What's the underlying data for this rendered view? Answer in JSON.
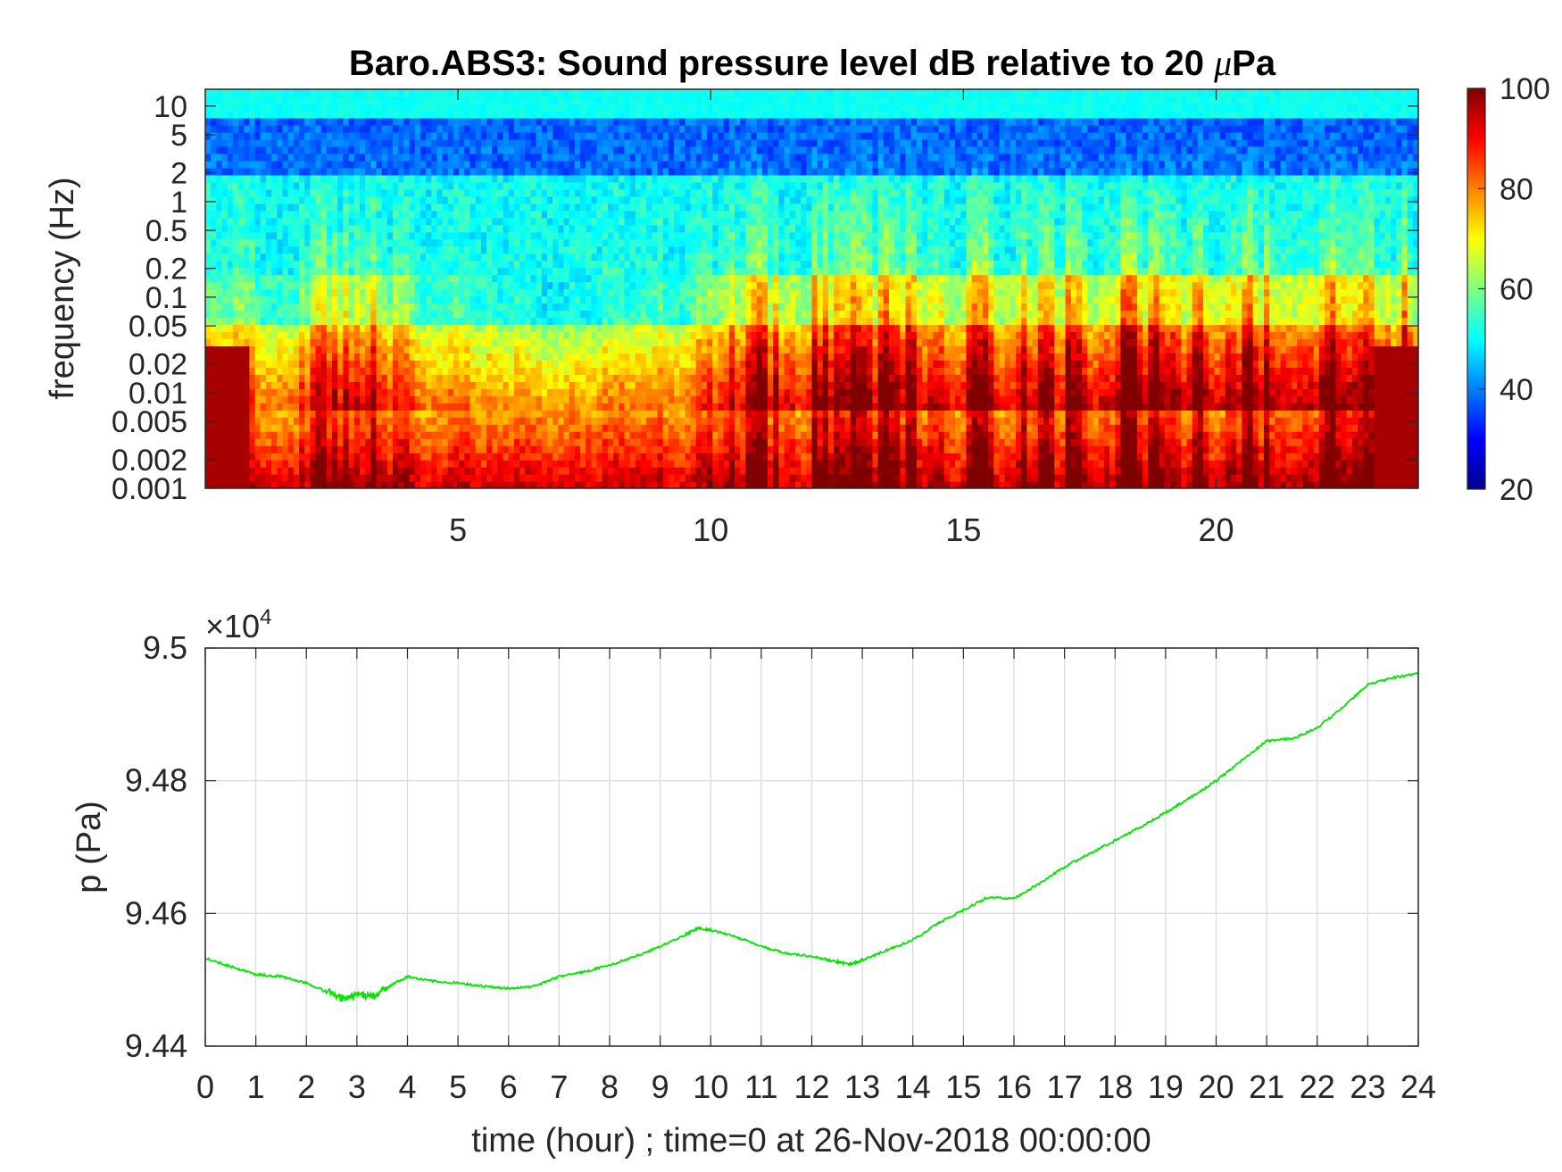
{
  "chart_data": [
    {
      "type": "heatmap",
      "title": "Baro.ABS3: Sound pressure level dB relative to 20 μPa",
      "title_prefix": "Baro.ABS3: Sound pressure level dB relative to 20 ",
      "title_mu": "μ",
      "title_suffix": "Pa",
      "ylabel": "frequency (Hz)",
      "xlabel": "",
      "xlim": [
        0,
        24
      ],
      "ylim": [
        0.001,
        15
      ],
      "yscale": "log",
      "x_ticks": [
        5,
        10,
        15,
        20
      ],
      "x_tick_labels": [
        "5",
        "10",
        "15",
        "20"
      ],
      "y_ticks": [
        0.001,
        0.002,
        0.005,
        0.01,
        0.02,
        0.05,
        0.1,
        0.2,
        0.5,
        1,
        2,
        5,
        10
      ],
      "y_tick_labels": [
        "0.001",
        "0.002",
        "0.005",
        "0.01",
        "0.02",
        "0.05",
        "0.1",
        "0.2",
        "0.5",
        "1",
        "2",
        "5",
        "10"
      ],
      "colorbar": {
        "limits": [
          20,
          100
        ],
        "ticks": [
          20,
          40,
          60,
          80,
          100
        ],
        "tick_labels": [
          "20",
          "40",
          "60",
          "80",
          "100"
        ],
        "colormap": "jet"
      },
      "colormap_stops": [
        "#00008f",
        "#0000ff",
        "#00ffff",
        "#ffff00",
        "#ff0000",
        "#800000"
      ],
      "grid": false
    },
    {
      "type": "line",
      "xlabel": "time (hour) ; time=0 at 26-Nov-2018 00:00:00",
      "ylabel": "p (Pa)",
      "xlim": [
        0,
        24
      ],
      "ylim": [
        94400,
        95000
      ],
      "exponent_label": "×10",
      "exponent_power": "4",
      "x_ticks": [
        0,
        1,
        2,
        3,
        4,
        5,
        6,
        7,
        8,
        9,
        10,
        11,
        12,
        13,
        14,
        15,
        16,
        17,
        18,
        19,
        20,
        21,
        22,
        23,
        24
      ],
      "x_tick_labels": [
        "0",
        "1",
        "2",
        "3",
        "4",
        "5",
        "6",
        "7",
        "8",
        "9",
        "10",
        "11",
        "12",
        "13",
        "14",
        "15",
        "16",
        "17",
        "18",
        "19",
        "20",
        "21",
        "22",
        "23",
        "24"
      ],
      "y_ticks": [
        94400,
        94600,
        94800,
        95000
      ],
      "y_tick_labels": [
        "9.44",
        "9.46",
        "9.48",
        "9.5"
      ],
      "grid": true,
      "line_color": "#00e600",
      "series": [
        {
          "x": [
            0,
            0.5,
            1,
            1.5,
            2,
            2.5,
            2.75,
            3,
            3.3,
            3.6,
            4,
            4.5,
            5,
            5.5,
            6,
            6.5,
            7,
            7.5,
            8,
            8.5,
            9,
            9.5,
            9.75,
            10,
            10.5,
            11,
            11.5,
            12,
            12.5,
            12.75,
            13,
            13.5,
            14,
            14.5,
            15,
            15.5,
            16,
            16.5,
            17,
            17.5,
            18,
            18.5,
            19,
            19.5,
            20,
            20.5,
            21,
            21.5,
            22,
            22.5,
            23,
            23.5,
            24
          ],
          "y": [
            94533,
            94520,
            94508,
            94505,
            94495,
            94480,
            94470,
            94478,
            94475,
            94488,
            94505,
            94498,
            94495,
            94490,
            94487,
            94490,
            94505,
            94512,
            94522,
            94535,
            94550,
            94568,
            94578,
            94575,
            94565,
            94550,
            94540,
            94535,
            94527,
            94523,
            94530,
            94545,
            94560,
            94585,
            94605,
            94625,
            94622,
            94645,
            94670,
            94690,
            94710,
            94730,
            94752,
            94775,
            94800,
            94830,
            94860,
            94863,
            94880,
            94910,
            94945,
            94955,
            94962
          ]
        }
      ]
    }
  ]
}
